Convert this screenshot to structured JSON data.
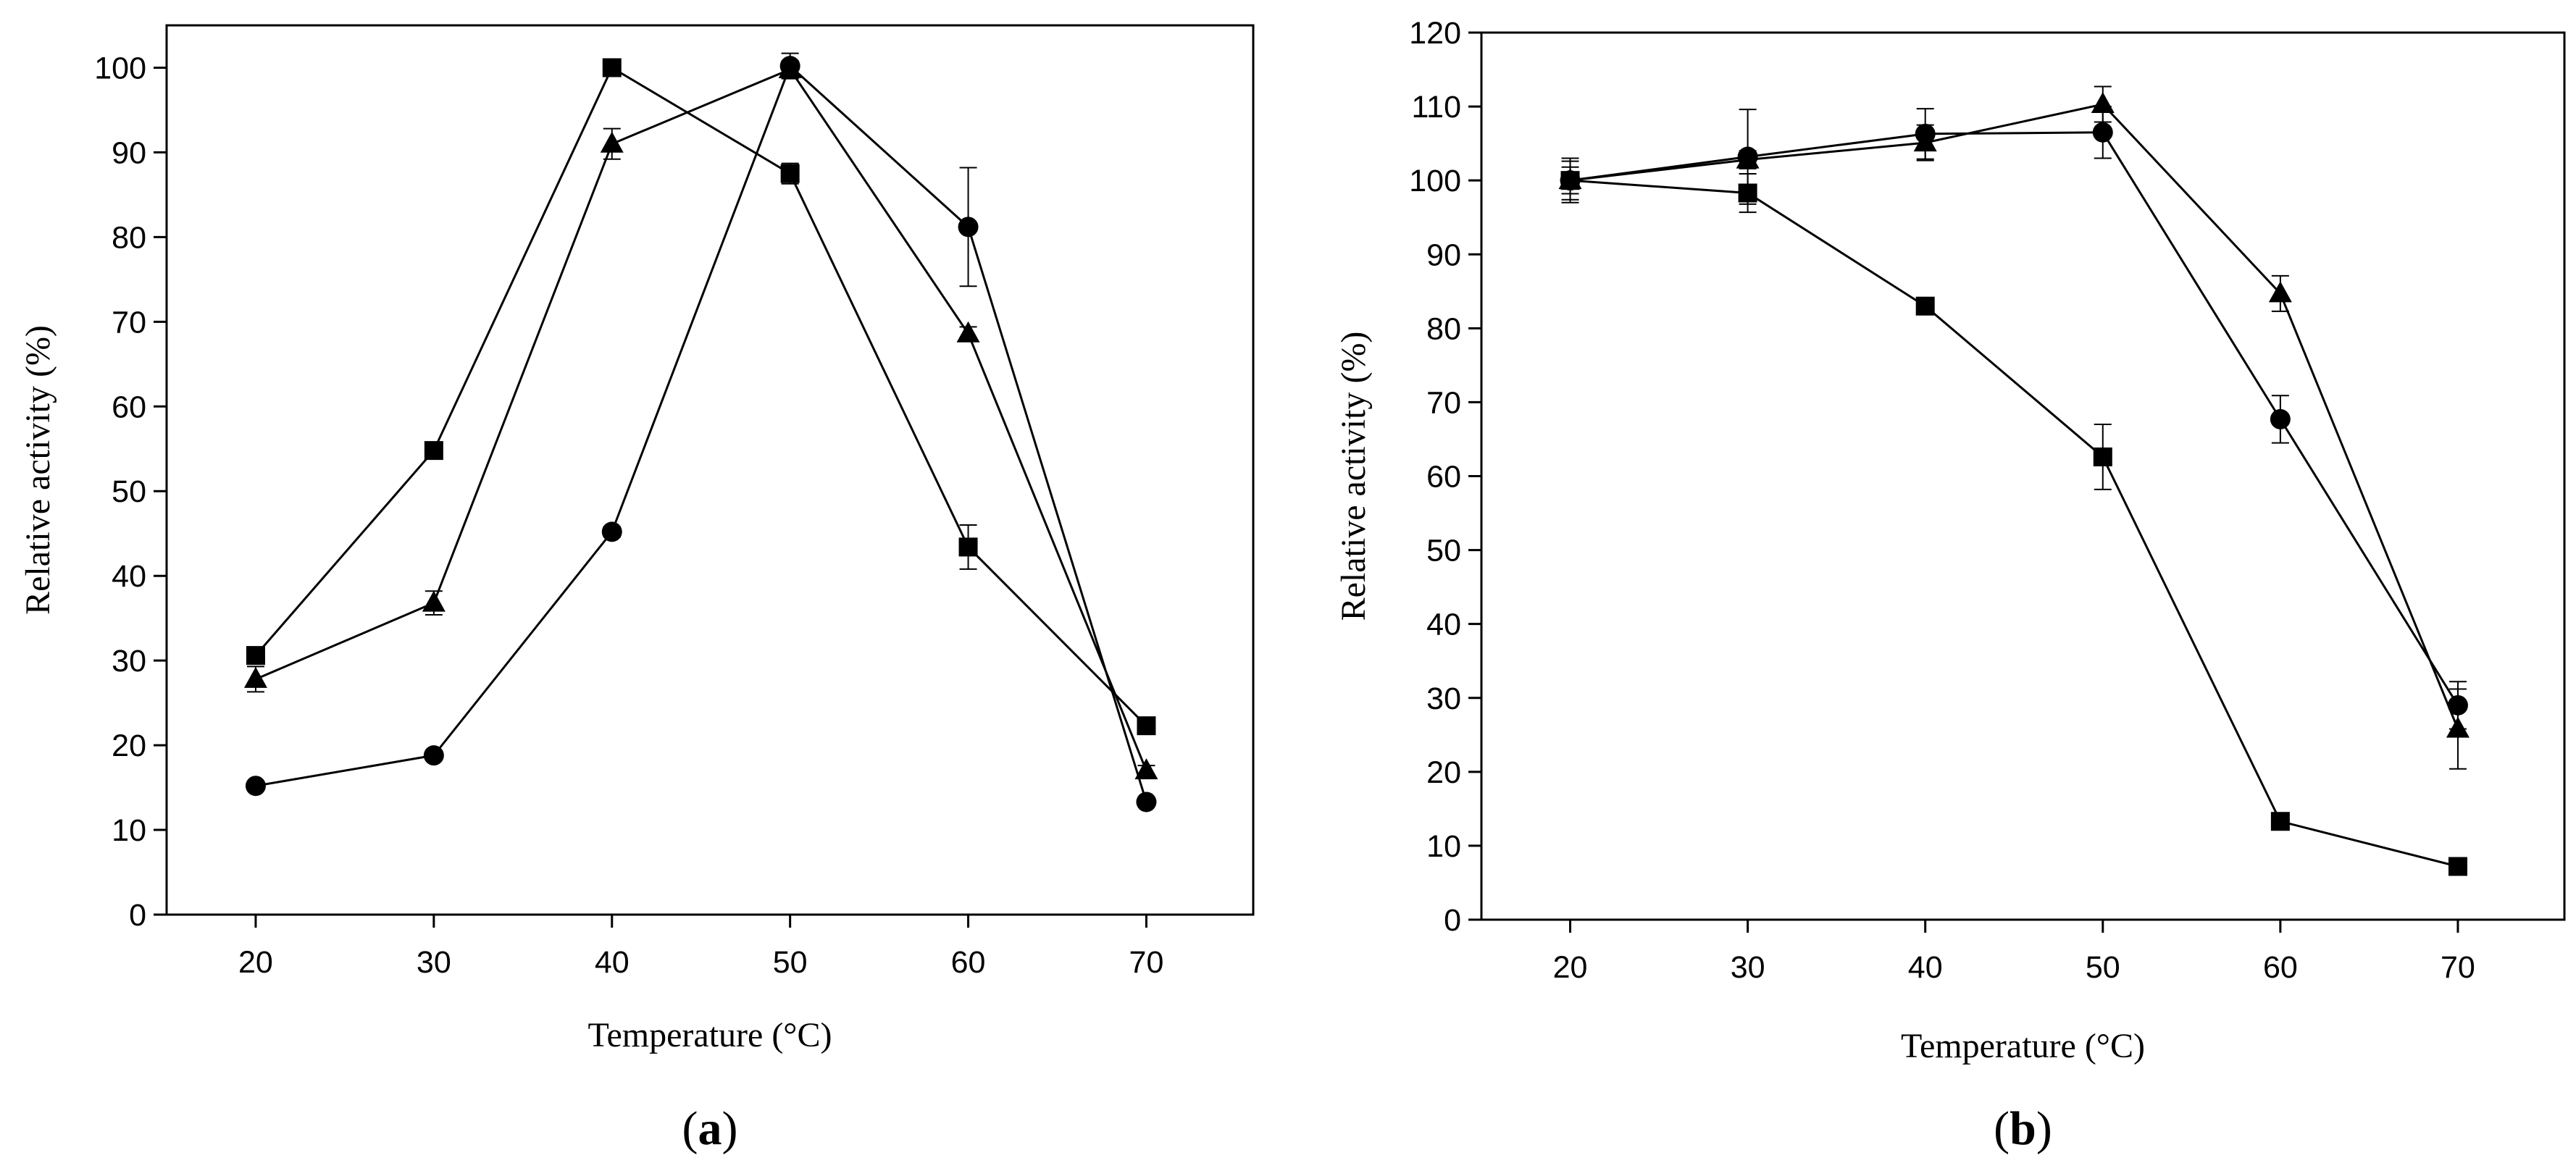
{
  "chart_data": [
    {
      "type": "line",
      "panel_label": "a",
      "xlabel": "Temperature (°C)",
      "ylabel": "Relative activity (%)",
      "x": [
        20,
        30,
        40,
        50,
        60,
        70
      ],
      "xticks": [
        20,
        30,
        40,
        50,
        60,
        70
      ],
      "xlim": [
        15,
        76
      ],
      "ylim": [
        0,
        105
      ],
      "yticks": [
        0,
        10,
        20,
        30,
        40,
        50,
        60,
        70,
        80,
        90,
        100
      ],
      "grid": false,
      "legend": "none",
      "series": [
        {
          "name": "square",
          "marker": "square",
          "values": [
            30.6,
            54.8,
            100,
            87.5,
            43.4,
            22.3
          ],
          "errors": [
            0.3,
            0.4,
            0.3,
            1.2,
            2.6,
            0.4
          ]
        },
        {
          "name": "triangle",
          "marker": "triangle",
          "values": [
            27.8,
            36.8,
            91.0,
            99.8,
            68.6,
            17.0
          ],
          "errors": [
            1.5,
            1.4,
            1.8,
            1.0,
            0.8,
            0.6
          ]
        },
        {
          "name": "circle",
          "marker": "circle",
          "values": [
            15.2,
            18.8,
            45.2,
            100.2,
            81.2,
            13.3
          ],
          "errors": [
            0.3,
            0.4,
            0.6,
            1.5,
            7.0,
            0.4
          ]
        }
      ]
    },
    {
      "type": "line",
      "panel_label": "b",
      "xlabel": "Temperature (°C)",
      "ylabel": "Relative activity (%)",
      "x": [
        20,
        30,
        40,
        50,
        60,
        70
      ],
      "xticks": [
        20,
        30,
        40,
        50,
        60,
        70
      ],
      "xlim": [
        15,
        76
      ],
      "ylim": [
        0,
        120
      ],
      "yticks": [
        0,
        10,
        20,
        30,
        40,
        50,
        60,
        70,
        80,
        90,
        100,
        110,
        120
      ],
      "grid": false,
      "legend": "none",
      "series": [
        {
          "name": "square",
          "marker": "square",
          "values": [
            100,
            98.3,
            83.0,
            62.6,
            13.3,
            7.2
          ],
          "errors": [
            3.0,
            2.6,
            0.4,
            4.4,
            0.4,
            0.4
          ]
        },
        {
          "name": "triangle",
          "marker": "triangle",
          "values": [
            100,
            102.8,
            105.1,
            110.3,
            84.7,
            25.8
          ],
          "errors": [
            1.8,
            1.2,
            2.4,
            2.4,
            2.4,
            5.4
          ]
        },
        {
          "name": "circle",
          "marker": "circle",
          "values": [
            100,
            103.2,
            106.3,
            106.5,
            67.7,
            29.0
          ],
          "errors": [
            2.6,
            6.4,
            3.4,
            3.5,
            3.2,
            3.2
          ]
        }
      ]
    }
  ]
}
